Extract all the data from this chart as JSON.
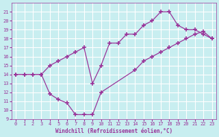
{
  "xlabel": "Windchill (Refroidissement éolien,°C)",
  "bg_color": "#c8eef0",
  "line_color": "#993399",
  "grid_color": "#ffffff",
  "xlim": [
    -0.5,
    23.5
  ],
  "ylim": [
    9,
    22
  ],
  "xticks": [
    0,
    1,
    2,
    3,
    4,
    5,
    6,
    7,
    8,
    9,
    10,
    11,
    12,
    13,
    14,
    15,
    16,
    17,
    18,
    19,
    20,
    21,
    22,
    23
  ],
  "yticks": [
    9,
    10,
    11,
    12,
    13,
    14,
    15,
    16,
    17,
    18,
    19,
    20,
    21
  ],
  "line1_x": [
    0,
    1,
    2,
    3,
    4,
    5,
    6,
    7,
    8,
    9,
    10,
    11,
    12,
    13,
    14,
    15,
    16,
    17,
    18,
    19,
    20,
    21,
    22,
    23
  ],
  "line1_y": [
    14,
    14,
    14,
    14,
    15,
    15.5,
    16,
    16.5,
    17,
    13,
    15,
    17.5,
    17.5,
    18.5,
    18.5,
    19.5,
    20,
    21,
    21,
    19.5,
    19,
    19,
    18.5,
    18
  ],
  "line2_x": [
    0,
    1,
    2,
    3,
    4,
    5,
    6,
    7,
    8,
    9,
    10,
    14,
    15,
    16,
    17,
    18,
    19,
    20,
    21,
    22,
    23
  ],
  "line2_y": [
    14,
    14,
    14,
    14,
    11.8,
    11.2,
    10.8,
    9.5,
    9.5,
    9.5,
    12,
    14.5,
    15.5,
    16,
    16.5,
    17,
    17.5,
    18,
    18.5,
    18.8,
    18
  ]
}
